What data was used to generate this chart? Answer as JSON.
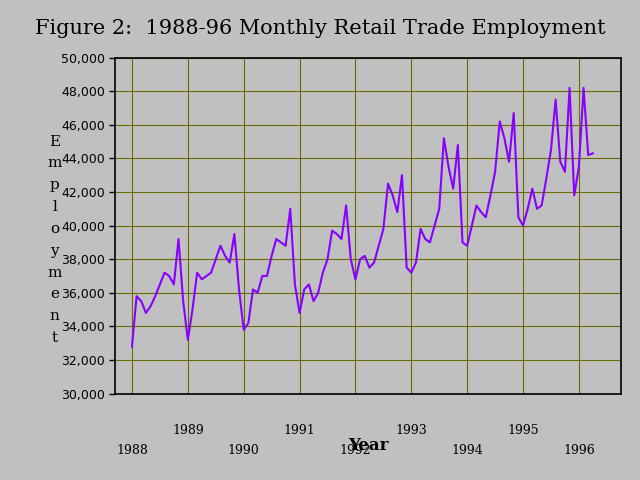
{
  "title": "Figure 2:  1988-96 Monthly Retail Trade Employment",
  "xlabel": "Year",
  "ylabel_chars": [
    "E",
    "m",
    "p",
    "l",
    "o",
    "y",
    "m",
    "e",
    "n",
    "t"
  ],
  "ylim": [
    30000,
    50000
  ],
  "yticks": [
    30000,
    32000,
    34000,
    36000,
    38000,
    40000,
    42000,
    44000,
    46000,
    48000,
    50000
  ],
  "xticks_all": [
    1988,
    1989,
    1990,
    1991,
    1992,
    1993,
    1994,
    1995,
    1996
  ],
  "xticks_even": [
    1988,
    1990,
    1992,
    1994,
    1996
  ],
  "xticks_odd": [
    1989,
    1991,
    1993,
    1995
  ],
  "line_color": "#8800ff",
  "bg_color": "#c0c0c0",
  "plot_bg_color": "#c0c0c0",
  "grid_color": "#6b6b00",
  "title_fontsize": 15,
  "values": [
    32800,
    35800,
    35500,
    34800,
    35200,
    35800,
    36500,
    37200,
    37000,
    36500,
    39200,
    35500,
    33200,
    35000,
    37200,
    36800,
    37000,
    37200,
    38000,
    38800,
    38200,
    37800,
    39500,
    36200,
    33800,
    34200,
    36200,
    36000,
    37000,
    37000,
    38200,
    39200,
    39000,
    38800,
    41000,
    36500,
    34800,
    36200,
    36500,
    35500,
    36000,
    37200,
    38000,
    39700,
    39500,
    39200,
    41200,
    38000,
    36800,
    38000,
    38200,
    37500,
    37800,
    38800,
    39800,
    42500,
    41800,
    40800,
    43000,
    37500,
    37200,
    37800,
    39800,
    39200,
    39000,
    40000,
    41000,
    45200,
    43500,
    42200,
    44800,
    39000,
    38800,
    40000,
    41200,
    40800,
    40500,
    41800,
    43200,
    46200,
    45200,
    43800,
    46700,
    40500,
    40000,
    41000,
    42200,
    41000,
    41200,
    42800,
    44500,
    47500,
    43800,
    43200,
    48200,
    41800,
    43500,
    48200,
    44200,
    44300
  ]
}
